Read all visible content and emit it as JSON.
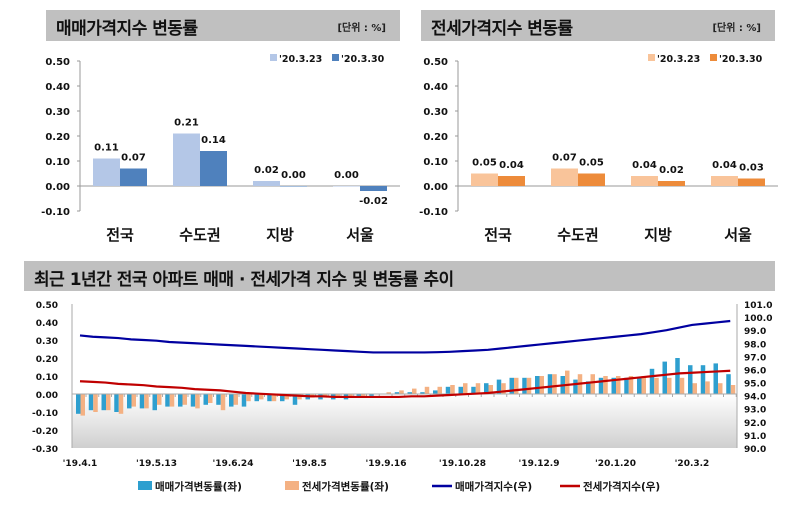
{
  "sales_panel": {
    "title": "매매가격지수 변동률",
    "unit": "[단위 : %]"
  },
  "jeonse_panel": {
    "title": "전세가격지수 변동률",
    "unit": "[단위 : %]"
  },
  "trend_panel": {
    "title": "최근 1년간 전국 아파트 매매 · 전세가격 지수 및 변동률 추이"
  },
  "chart_data": [
    {
      "type": "bar",
      "categories": [
        "전국",
        "수도권",
        "지방",
        "서울"
      ],
      "series": [
        {
          "name": "'20.3.23",
          "values": [
            0.11,
            0.21,
            0.02,
            0.0
          ],
          "color": "#b4c7e7"
        },
        {
          "name": "'20.3.30",
          "values": [
            0.07,
            0.14,
            0.0,
            -0.02
          ],
          "color": "#4f81bd"
        }
      ],
      "data_labels": [
        [
          "0.11",
          "0.21",
          "0.02",
          "0.00"
        ],
        [
          "0.07",
          "0.14",
          "0.00",
          "-0.02"
        ]
      ],
      "ylim": [
        -0.1,
        0.5
      ],
      "yticks": [
        "0.50",
        "0.40",
        "0.30",
        "0.20",
        "0.10",
        "0.00",
        "-0.10"
      ],
      "legend": "top-right"
    },
    {
      "type": "bar",
      "categories": [
        "전국",
        "수도권",
        "지방",
        "서울"
      ],
      "series": [
        {
          "name": "'20.3.23",
          "values": [
            0.05,
            0.07,
            0.04,
            0.04
          ],
          "color": "#f9c49a"
        },
        {
          "name": "'20.3.30",
          "values": [
            0.04,
            0.05,
            0.02,
            0.03
          ],
          "color": "#ed8b3a"
        }
      ],
      "data_labels": [
        [
          "0.05",
          "0.07",
          "0.04",
          "0.04"
        ],
        [
          "0.04",
          "0.05",
          "0.02",
          "0.03"
        ]
      ],
      "ylim": [
        -0.1,
        0.5
      ],
      "yticks": [
        "0.50",
        "0.40",
        "0.30",
        "0.20",
        "0.10",
        "0.00",
        "-0.10"
      ],
      "legend": "top-right"
    },
    {
      "type": "bar+line",
      "x_tick_labels": [
        "'19.4.1",
        "'19.5.13",
        "'19.6.24",
        "'19.8.5",
        "'19.9.16",
        "'19.10.28",
        "'19.12.9",
        "'20.1.20",
        "'20.3.2"
      ],
      "ylim_left": [
        -0.3,
        0.5
      ],
      "ylim_right": [
        90.0,
        101.0
      ],
      "yticks_left": [
        "0.50",
        "0.40",
        "0.30",
        "0.20",
        "0.10",
        "0.00",
        "-0.10",
        "-0.20",
        "-0.30"
      ],
      "yticks_right": [
        "101.0",
        "100.0",
        "99.0",
        "98.0",
        "97.0",
        "96.0",
        "95.0",
        "94.0",
        "93.0",
        "92.0",
        "91.0",
        "90.0"
      ],
      "legend": "bottom",
      "series": [
        {
          "name": "매매가격변동률(좌)",
          "type": "bar",
          "axis": "left",
          "color": "#2e9fcf",
          "values": [
            -0.11,
            -0.09,
            -0.09,
            -0.1,
            -0.08,
            -0.08,
            -0.09,
            -0.07,
            -0.07,
            -0.07,
            -0.06,
            -0.06,
            -0.07,
            -0.07,
            -0.04,
            -0.04,
            -0.04,
            -0.06,
            -0.03,
            -0.03,
            -0.03,
            -0.03,
            -0.01,
            -0.01,
            0.0,
            0.01,
            0.01,
            0.01,
            0.02,
            0.04,
            0.04,
            0.04,
            0.06,
            0.08,
            0.09,
            0.09,
            0.1,
            0.11,
            0.1,
            0.08,
            0.07,
            0.09,
            0.09,
            0.09,
            0.09,
            0.14,
            0.18,
            0.2,
            0.16,
            0.16,
            0.17,
            0.11
          ]
        },
        {
          "name": "전세가격변동률(좌)",
          "type": "bar",
          "axis": "left",
          "color": "#f4b183",
          "values": [
            -0.12,
            -0.1,
            -0.09,
            -0.11,
            -0.07,
            -0.08,
            -0.06,
            -0.07,
            -0.06,
            -0.08,
            -0.05,
            -0.09,
            -0.06,
            -0.04,
            -0.03,
            -0.04,
            -0.03,
            -0.03,
            -0.02,
            -0.02,
            -0.02,
            -0.02,
            -0.01,
            0.0,
            0.01,
            0.02,
            0.03,
            0.04,
            0.04,
            0.05,
            0.06,
            0.06,
            0.05,
            0.06,
            0.09,
            0.09,
            0.1,
            0.11,
            0.13,
            0.11,
            0.11,
            0.1,
            0.1,
            0.1,
            0.1,
            0.09,
            0.09,
            0.09,
            0.06,
            0.07,
            0.06,
            0.05
          ]
        },
        {
          "name": "매매가격지수(우)",
          "type": "line",
          "axis": "right",
          "color": "#0000a0",
          "values": [
            98.6,
            98.5,
            98.45,
            98.4,
            98.3,
            98.25,
            98.2,
            98.1,
            98.05,
            98.0,
            97.95,
            97.9,
            97.85,
            97.8,
            97.75,
            97.7,
            97.65,
            97.6,
            97.55,
            97.5,
            97.45,
            97.4,
            97.35,
            97.3,
            97.3,
            97.3,
            97.3,
            97.3,
            97.32,
            97.35,
            97.4,
            97.45,
            97.5,
            97.6,
            97.7,
            97.8,
            97.9,
            98.0,
            98.1,
            98.2,
            98.3,
            98.4,
            98.5,
            98.6,
            98.7,
            98.85,
            99.0,
            99.2,
            99.4,
            99.5,
            99.6,
            99.7
          ]
        },
        {
          "name": "전세가격지수(우)",
          "type": "line",
          "axis": "right",
          "color": "#c00000",
          "values": [
            95.1,
            95.05,
            95.0,
            94.9,
            94.85,
            94.8,
            94.7,
            94.65,
            94.6,
            94.5,
            94.45,
            94.4,
            94.3,
            94.2,
            94.15,
            94.1,
            94.05,
            94.0,
            93.95,
            93.95,
            93.9,
            93.9,
            93.9,
            93.9,
            93.9,
            93.9,
            93.95,
            93.95,
            94.0,
            94.05,
            94.1,
            94.15,
            94.2,
            94.3,
            94.4,
            94.5,
            94.6,
            94.7,
            94.8,
            94.9,
            95.0,
            95.1,
            95.2,
            95.3,
            95.4,
            95.5,
            95.6,
            95.7,
            95.75,
            95.8,
            95.85,
            95.9
          ]
        }
      ]
    }
  ]
}
